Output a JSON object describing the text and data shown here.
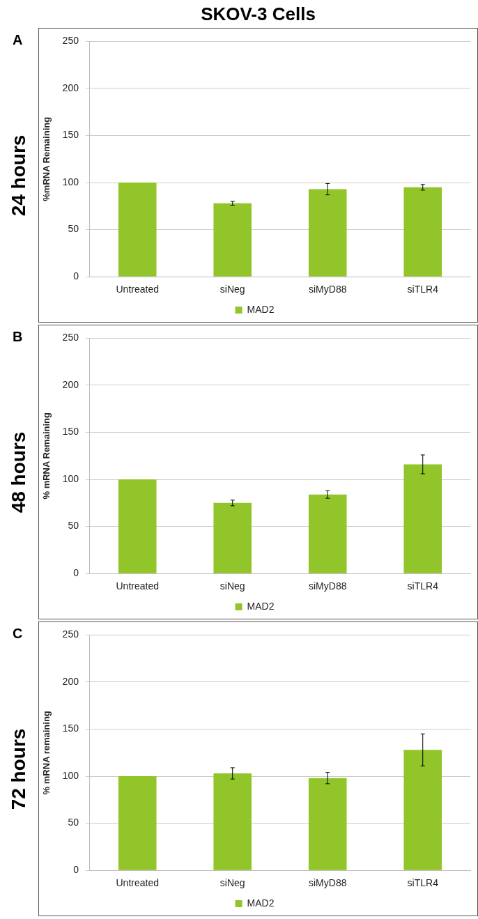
{
  "chart_data": [
    {
      "type": "bar",
      "title": "SKOV-3 Cells",
      "annotations": [
        "A",
        "24 hours"
      ],
      "ylabel": "%mRNA Remaining",
      "categories": [
        "Untreated",
        "siNeg",
        "siMyD88",
        "siTLR4"
      ],
      "series": [
        {
          "name": "MAD2",
          "color": "#92c52a",
          "values": [
            100,
            78,
            93,
            95
          ],
          "errors": [
            null,
            2,
            6,
            3
          ]
        }
      ],
      "ylim": [
        0,
        250
      ],
      "yticks": [
        0,
        50,
        100,
        150,
        200,
        250
      ],
      "grid": "y",
      "legend": "bottom"
    },
    {
      "type": "bar",
      "annotations": [
        "B",
        "48 hours"
      ],
      "ylabel": "% mRNA Remaining",
      "categories": [
        "Untreated",
        "siNeg",
        "siMyD88",
        "siTLR4"
      ],
      "series": [
        {
          "name": "MAD2",
          "color": "#92c52a",
          "values": [
            100,
            75,
            84,
            116
          ],
          "errors": [
            null,
            3,
            4,
            10
          ]
        }
      ],
      "ylim": [
        0,
        250
      ],
      "yticks": [
        0,
        50,
        100,
        150,
        200,
        250
      ],
      "grid": "y",
      "legend": "bottom"
    },
    {
      "type": "bar",
      "annotations": [
        "C",
        "72 hours"
      ],
      "ylabel": "% mRNA remaining",
      "categories": [
        "Untreated",
        "siNeg",
        "siMyD88",
        "siTLR4"
      ],
      "series": [
        {
          "name": "MAD2",
          "color": "#92c52a",
          "values": [
            100,
            103,
            98,
            128
          ],
          "errors": [
            null,
            6,
            6,
            17
          ]
        }
      ],
      "ylim": [
        0,
        250
      ],
      "yticks": [
        0,
        50,
        100,
        150,
        200,
        250
      ],
      "grid": "y",
      "legend": "bottom"
    }
  ]
}
